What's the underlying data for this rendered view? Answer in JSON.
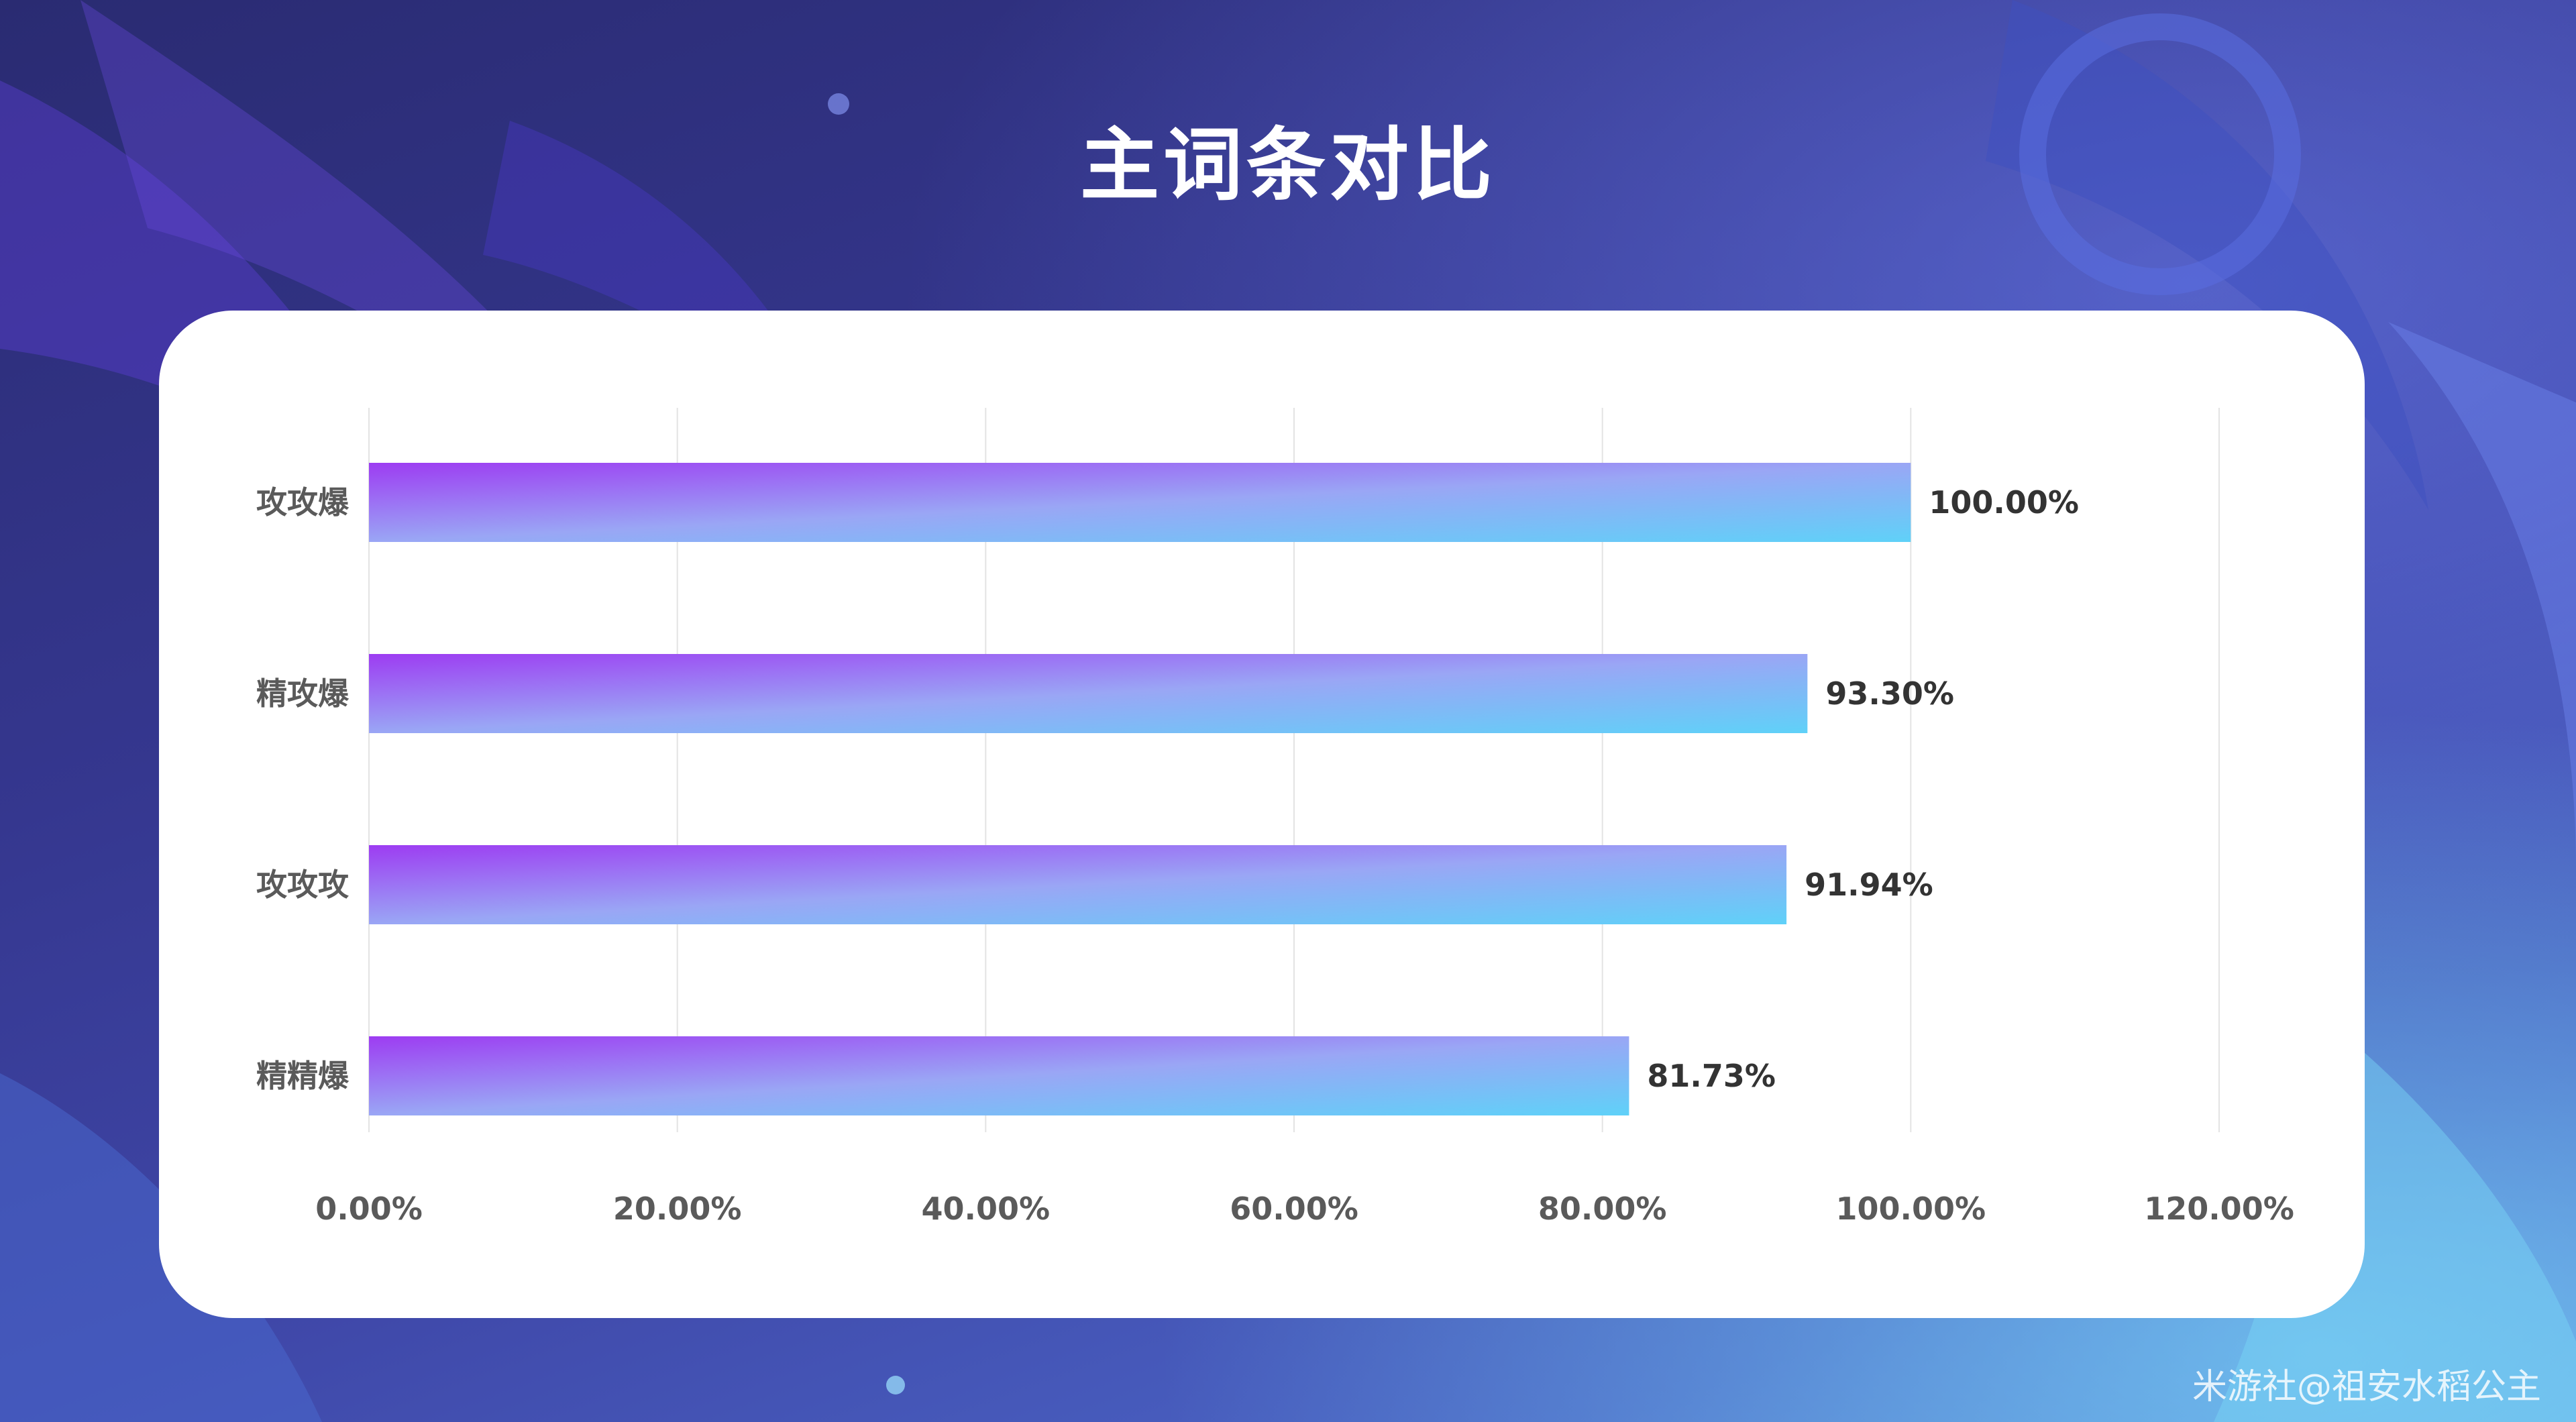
{
  "page": {
    "title": "主词条对比",
    "watermark": "米游社@祖安水稻公主"
  },
  "chart_data": {
    "type": "bar",
    "orientation": "horizontal",
    "categories": [
      "攻攻爆",
      "精攻爆",
      "攻攻攻",
      "精精爆"
    ],
    "values": [
      100.0,
      93.3,
      91.94,
      81.73
    ],
    "value_labels": [
      "100.00%",
      "93.30%",
      "91.94%",
      "81.73%"
    ],
    "xlim": [
      0,
      120
    ],
    "x_ticks": [
      0,
      20,
      40,
      60,
      80,
      100,
      120
    ],
    "x_tick_labels": [
      "0.00%",
      "20.00%",
      "40.00%",
      "60.00%",
      "80.00%",
      "100.00%",
      "120.00%"
    ],
    "grid": "vertical",
    "bar_gradient": [
      "#9d3cf2",
      "#9aa6f5",
      "#5fd1f8"
    ],
    "colors": {
      "axis_text": "#5a5a5a",
      "label_text": "#333333",
      "grid": "#e3e3e3",
      "card": "#ffffff",
      "title": "#ffffff"
    }
  }
}
